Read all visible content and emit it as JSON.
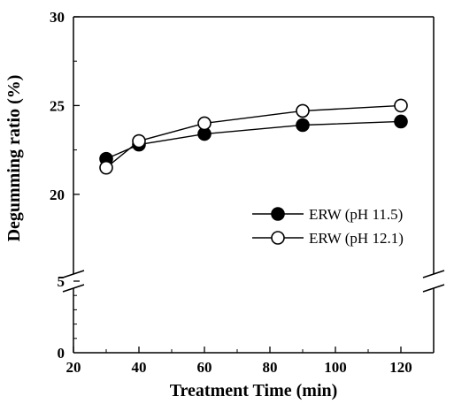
{
  "chart_data": {
    "type": "line",
    "xlabel": "Treatment Time (min)",
    "ylabel": "Degumming ratio (%)",
    "xlim": [
      20,
      130
    ],
    "x_ticks": [
      "20",
      "40",
      "60",
      "80",
      "100",
      "120"
    ],
    "y_axis_break": true,
    "y_ticks_lower": [
      "0",
      "5"
    ],
    "y_ticks_upper": [
      "20",
      "25",
      "30"
    ],
    "ylim_lower": [
      0,
      5
    ],
    "ylim_upper": [
      17.5,
      30
    ],
    "legend_position": "right",
    "series": [
      {
        "name": "ERW (pH 11.5)",
        "marker": "filled-circle",
        "color": "#000000",
        "x": [
          30,
          40,
          60,
          90,
          120
        ],
        "y": [
          22.0,
          22.8,
          23.4,
          23.9,
          24.1
        ]
      },
      {
        "name": "ERW (pH 12.1)",
        "marker": "open-circle",
        "color": "#000000",
        "x": [
          30,
          40,
          60,
          90,
          120
        ],
        "y": [
          21.5,
          23.0,
          24.0,
          24.7,
          25.0
        ]
      }
    ]
  }
}
